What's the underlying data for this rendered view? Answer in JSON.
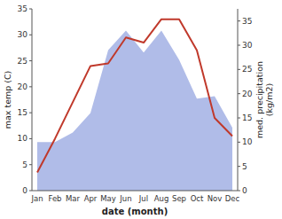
{
  "chart_data": {
    "type": "line",
    "categories": [
      "Jan",
      "Feb",
      "Mar",
      "Apr",
      "May",
      "Jun",
      "Jul",
      "Aug",
      "Sep",
      "Oct",
      "Nov",
      "Dec"
    ],
    "xlabel": "date (month)",
    "ylabel": "max temp (C)",
    "y2label": "med. precipitation\n(kg/m2)",
    "ylim": [
      0,
      35
    ],
    "yticks": [
      0,
      5,
      10,
      15,
      20,
      25,
      30,
      35
    ],
    "y2lim": [
      0,
      37.5
    ],
    "y2ticks": [
      0,
      5,
      10,
      15,
      20,
      25,
      30,
      35
    ],
    "grid": false,
    "series": [
      {
        "type": "area",
        "axis": "y2",
        "color": "#b0bce8",
        "values": [
          10,
          10,
          12,
          16,
          29,
          33,
          28.5,
          33,
          27,
          19,
          19.5,
          13
        ]
      },
      {
        "type": "line",
        "color": "#c0392b",
        "values": [
          3.5,
          10,
          17,
          24,
          24.5,
          29.5,
          28.5,
          33,
          33,
          27,
          14,
          10.5
        ]
      }
    ]
  }
}
